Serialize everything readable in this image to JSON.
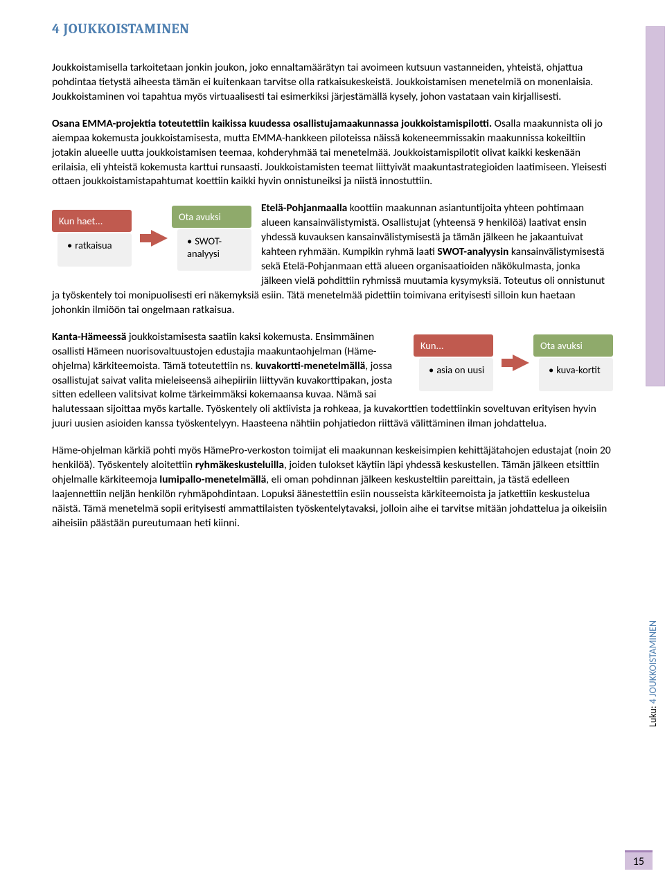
{
  "heading": "4 JOUKKOISTAMINEN",
  "para1": "Joukkoistamisella tarkoitetaan jonkin joukon, joko ennaltamäärätyn tai avoimeen kutsuun vastanneiden, yhteistä, ohjattua pohdintaa tietystä aiheesta tämän ei kuitenkaan tarvitse olla ratkaisukeskeistä. Joukkoistamisen menetelmiä on monenlaisia. Joukkoistaminen voi tapahtua myös virtuaalisesti tai esimerkiksi järjestämällä kysely, johon vastataan vain kirjallisesti.",
  "para2_bold": "Osana EMMA-projektia toteutettiin kaikissa kuudessa osallistujamaakunnassa joukkoistamispilotti.",
  "para2_rest": " Osalla maakunnista oli jo aiempaa kokemusta joukkoistamisesta, mutta EMMA-hankkeen piloteissa näissä kokeneemmissakin maakunnissa kokeiltiin jotakin alueelle uutta joukkoistamisen teemaa, kohderyhmää tai menetelmää. Joukkoistamispilotit olivat kaikki keskenään erilaisia, eli yhteistä kokemusta karttui runsaasti. Joukkoistamisten teemat liittyivät maakuntastrategioiden laatimiseen. Yleisesti ottaen joukkoistamistapahtumat koettiin kaikki hyvin onnistuneiksi ja niistä innostuttiin.",
  "para3_bold1": "Etelä-Pohjanmaalla",
  "para3_part1": " koottiin maakunnan asiantuntijoita yhteen pohtimaan alueen kansainvälistymistä. Osallistujat (yhteensä 9 henkilöä) laativat ensin yhdessä kuvauksen kansainvälistymisestä ja tämän jälkeen he jakaantuivat kahteen ryhmään. Kumpikin ryhmä laati ",
  "para3_bold2": "SWOT-analyysin",
  "para3_part2": " kansainvälistymisestä sekä Etelä-Pohjanmaan että alueen organisaatioiden näkökulmasta, jonka jälkeen vielä pohdittiin ryhmissä muutamia kysymyksiä. Toteutus oli onnistunut ja työskentely toi monipuolisesti eri näkemyksiä esiin. Tätä menetelmää pidettiin toimivana erityisesti silloin kun haetaan johonkin ilmiöön tai ongelmaan ratkaisua.",
  "tip1": {
    "red_header": "Kun haet...",
    "red_body": "ratkaisua",
    "green_header": "Ota avuksi",
    "green_body": "SWOT-analyysi"
  },
  "para4_bold1": "Kanta-Hämeessä",
  "para4_part1": " joukkoistamisesta saatiin kaksi kokemusta. Ensimmäinen osallisti Hämeen nuorisovaltuustojen edustajia maakuntaohjelman (Häme-ohjelma) kärkiteemoista. Tämä toteutettiin ns. ",
  "para4_bold2": "kuvakortti-menetelmällä",
  "para4_part2": ", jossa osallistujat saivat valita mieleiseensä aihepiiriin liittyvän kuvakorttipakan, josta sitten edelleen valitsivat kolme tärkeimmäksi kokemaansa kuvaa. Nämä sai halutessaan sijoittaa myös kartalle. Työskentely oli aktiivista ja rohkeaa, ja kuvakorttien todettiinkin  soveltuvan erityisen hyvin juuri uusien asioiden kanssa työskentelyyn. Haasteena nähtiin pohjatiedon riittävä välittäminen ilman johdattelua.",
  "tip2": {
    "red_header": "Kun...",
    "red_body": "asia on uusi",
    "green_header": "Ota avuksi",
    "green_body": "kuva-kortit"
  },
  "para5_part1": "Häme-ohjelman kärkiä pohti myös HämePro-verkoston toimijat eli maakunnan keskeisimpien kehittäjätahojen edustajat (noin 20 henkilöä). Työskentely aloitettiin ",
  "para5_bold1": "ryhmäkeskusteluilla",
  "para5_part2": ", joiden tulokset käytiin läpi yhdessä keskustellen. Tämän jälkeen etsittiin ohjelmalle kärkiteemoja ",
  "para5_bold2": "lumipallo-menetelmällä",
  "para5_part3": ", eli oman pohdinnan jälkeen keskusteltiin pareittain, ja tästä edelleen laajennettiin neljän henkilön ryhmäpohdintaan. Lopuksi äänestettiin esiin nousseista kärkiteemoista ja jatkettiin keskustelua näistä. Tämä menetelmä sopii erityisesti ammattilaisten työskentelytavaksi, jolloin aihe ei tarvitse mitään johdattelua ja oikeisiin aiheisiin päästään pureutumaan heti kiinni.",
  "side_label_prefix": "Luku: ",
  "side_label_rest": "4 JOUKKOISTAMINEN",
  "page_number": "15"
}
